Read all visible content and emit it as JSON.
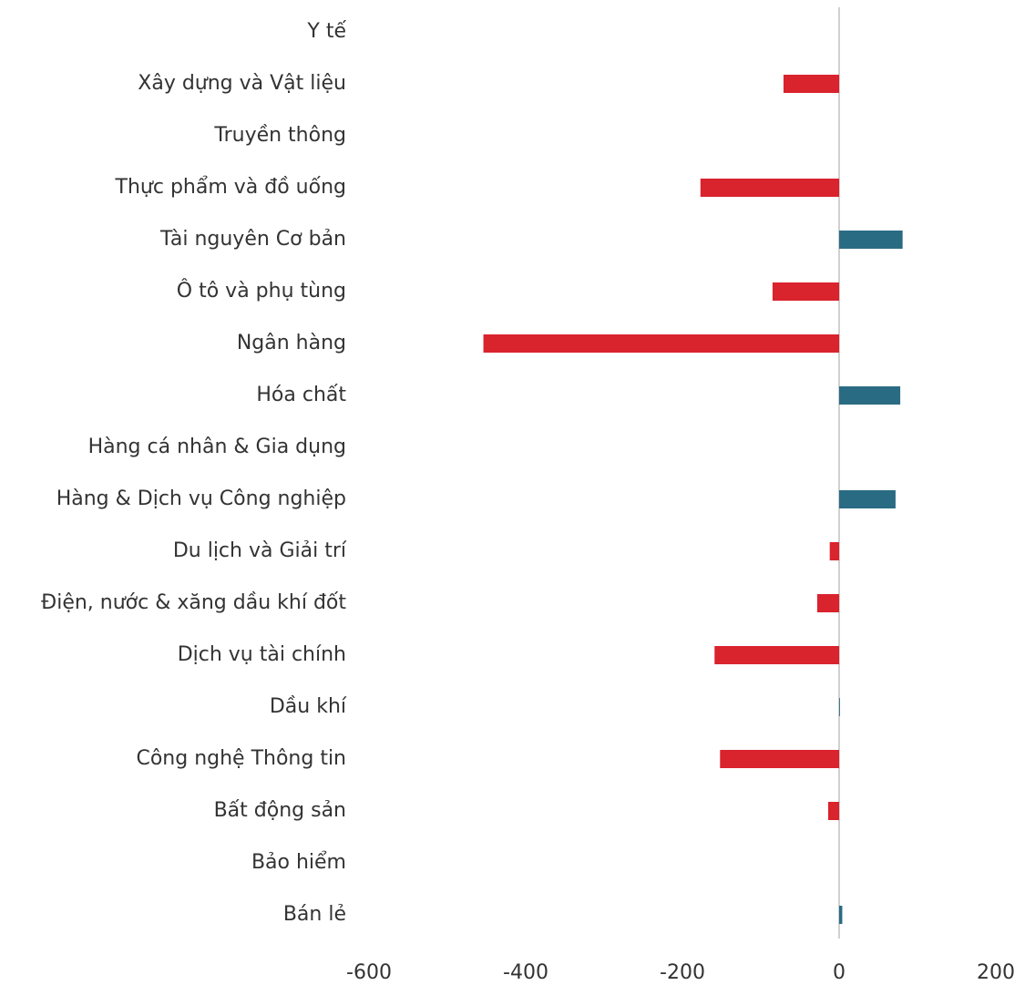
{
  "chart_data": {
    "type": "barh",
    "categories": [
      "Y tế",
      "Xây dựng và Vật liệu",
      "Truyền thông",
      "Thực phẩm và đồ uống",
      "Tài nguyên Cơ bản",
      "Ô tô và phụ tùng",
      "Ngân hàng",
      "Hóa chất",
      "Hàng cá nhân & Gia dụng",
      "Hàng & Dịch vụ Công nghiệp",
      "Du lịch và Giải trí",
      "Điện, nước & xăng dầu khí đốt",
      "Dịch vụ tài chính",
      "Dầu khí",
      "Công nghệ Thông tin",
      "Bất động sản",
      "Bảo hiểm",
      "Bán lẻ"
    ],
    "values": [
      0,
      -71,
      0,
      -177,
      81,
      -85,
      -454,
      78,
      0,
      72,
      -12,
      -28,
      -159,
      1,
      -152,
      -14,
      0,
      4
    ],
    "positive_color": "#2a6b84",
    "negative_color": "#d9232d",
    "xlim": [
      -600,
      200
    ],
    "xticks": [
      -600,
      -400,
      -200,
      0,
      200
    ]
  }
}
